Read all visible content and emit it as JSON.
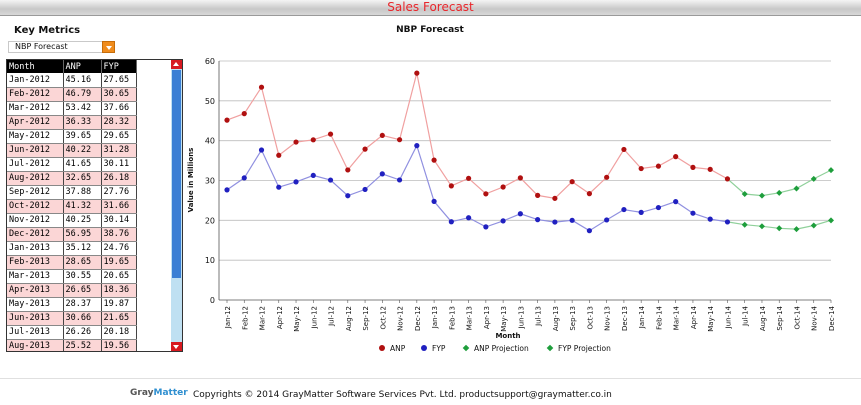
{
  "header": {
    "title": "Sales Forecast"
  },
  "key_metrics": {
    "title": "Key Metrics",
    "selected": "NBP Forecast"
  },
  "table": {
    "columns": [
      "Month",
      "ANP",
      "FYP"
    ],
    "rows": [
      [
        "Jan-2012",
        "45.16",
        "27.65"
      ],
      [
        "Feb-2012",
        "46.79",
        "30.65"
      ],
      [
        "Mar-2012",
        "53.42",
        "37.66"
      ],
      [
        "Apr-2012",
        "36.33",
        "28.32"
      ],
      [
        "May-2012",
        "39.65",
        "29.65"
      ],
      [
        "Jun-2012",
        "40.22",
        "31.28"
      ],
      [
        "Jul-2012",
        "41.65",
        "30.11"
      ],
      [
        "Aug-2012",
        "32.65",
        "26.18"
      ],
      [
        "Sep-2012",
        "37.88",
        "27.76"
      ],
      [
        "Oct-2012",
        "41.32",
        "31.66"
      ],
      [
        "Nov-2012",
        "40.25",
        "30.14"
      ],
      [
        "Dec-2012",
        "56.95",
        "38.76"
      ],
      [
        "Jan-2013",
        "35.12",
        "24.76"
      ],
      [
        "Feb-2013",
        "28.65",
        "19.65"
      ],
      [
        "Mar-2013",
        "30.55",
        "20.65"
      ],
      [
        "Apr-2013",
        "26.65",
        "18.36"
      ],
      [
        "May-2013",
        "28.37",
        "19.87"
      ],
      [
        "Jun-2013",
        "30.66",
        "21.65"
      ],
      [
        "Jul-2013",
        "26.26",
        "20.18"
      ],
      [
        "Aug-2013",
        "25.52",
        "19.56"
      ]
    ]
  },
  "colors": {
    "anp": "#b01010",
    "anp_line": "#f0a0a0",
    "fyp": "#2020c0",
    "fyp_line": "#9090e0",
    "projection": "#1e9e3c",
    "projection_line": "#8fd09a",
    "title_red": "#e8262b"
  },
  "chart_data": {
    "type": "line",
    "title": "NBP Forecast",
    "xlabel": "Month",
    "ylabel": "Value in Millions",
    "ylim": [
      0,
      60
    ],
    "yticks": [
      0,
      10,
      20,
      30,
      40,
      50,
      60
    ],
    "grid": true,
    "legend_position": "bottom",
    "categories": [
      "Jan-12",
      "Feb-12",
      "Mar-12",
      "Apr-12",
      "May-12",
      "Jun-12",
      "Jul-12",
      "Aug-12",
      "Sep-12",
      "Oct-12",
      "Nov-12",
      "Dec-12",
      "Jan-13",
      "Feb-13",
      "Mar-13",
      "Apr-13",
      "May-13",
      "Jun-13",
      "Jul-13",
      "Aug-13",
      "Sep-13",
      "Oct-13",
      "Nov-13",
      "Dec-13",
      "Jan-14",
      "Feb-14",
      "Mar-14",
      "Apr-14",
      "May-14",
      "Jun-14",
      "Jul-14",
      "Aug-14",
      "Sep-14",
      "Oct-14",
      "Nov-14",
      "Dec-14"
    ],
    "series": [
      {
        "name": "ANP",
        "values": [
          45.16,
          46.79,
          53.42,
          36.33,
          39.65,
          40.22,
          41.65,
          32.65,
          37.88,
          41.32,
          40.25,
          56.95,
          35.12,
          28.65,
          30.55,
          26.65,
          28.37,
          30.66,
          26.26,
          25.52,
          29.7,
          26.7,
          30.8,
          37.8,
          33.0,
          33.6,
          36.0,
          33.3,
          32.8,
          30.4,
          null,
          null,
          null,
          null,
          null,
          null
        ]
      },
      {
        "name": "FYP",
        "values": [
          27.65,
          30.65,
          37.66,
          28.32,
          29.65,
          31.28,
          30.11,
          26.18,
          27.76,
          31.66,
          30.14,
          38.76,
          24.76,
          19.65,
          20.65,
          18.36,
          19.87,
          21.65,
          20.18,
          19.56,
          20.0,
          17.4,
          20.1,
          22.7,
          22.0,
          23.2,
          24.7,
          21.8,
          20.3,
          19.6,
          null,
          null,
          null,
          null,
          null,
          null
        ]
      },
      {
        "name": "ANP Projection",
        "values": [
          null,
          null,
          null,
          null,
          null,
          null,
          null,
          null,
          null,
          null,
          null,
          null,
          null,
          null,
          null,
          null,
          null,
          null,
          null,
          null,
          null,
          null,
          null,
          null,
          null,
          null,
          null,
          null,
          null,
          30.4,
          26.6,
          26.2,
          26.9,
          28.0,
          30.4,
          32.6
        ]
      },
      {
        "name": "FYP Projection",
        "values": [
          null,
          null,
          null,
          null,
          null,
          null,
          null,
          null,
          null,
          null,
          null,
          null,
          null,
          null,
          null,
          null,
          null,
          null,
          null,
          null,
          null,
          null,
          null,
          null,
          null,
          null,
          null,
          null,
          null,
          19.6,
          18.9,
          18.5,
          18.0,
          17.8,
          18.7,
          20.0
        ]
      }
    ]
  },
  "footer": {
    "logo_gray": "Gray",
    "logo_matter": "Matter",
    "text": "Copyrights © 2014 GrayMatter Software Services Pvt. Ltd. productsupport@graymatter.co.in"
  }
}
